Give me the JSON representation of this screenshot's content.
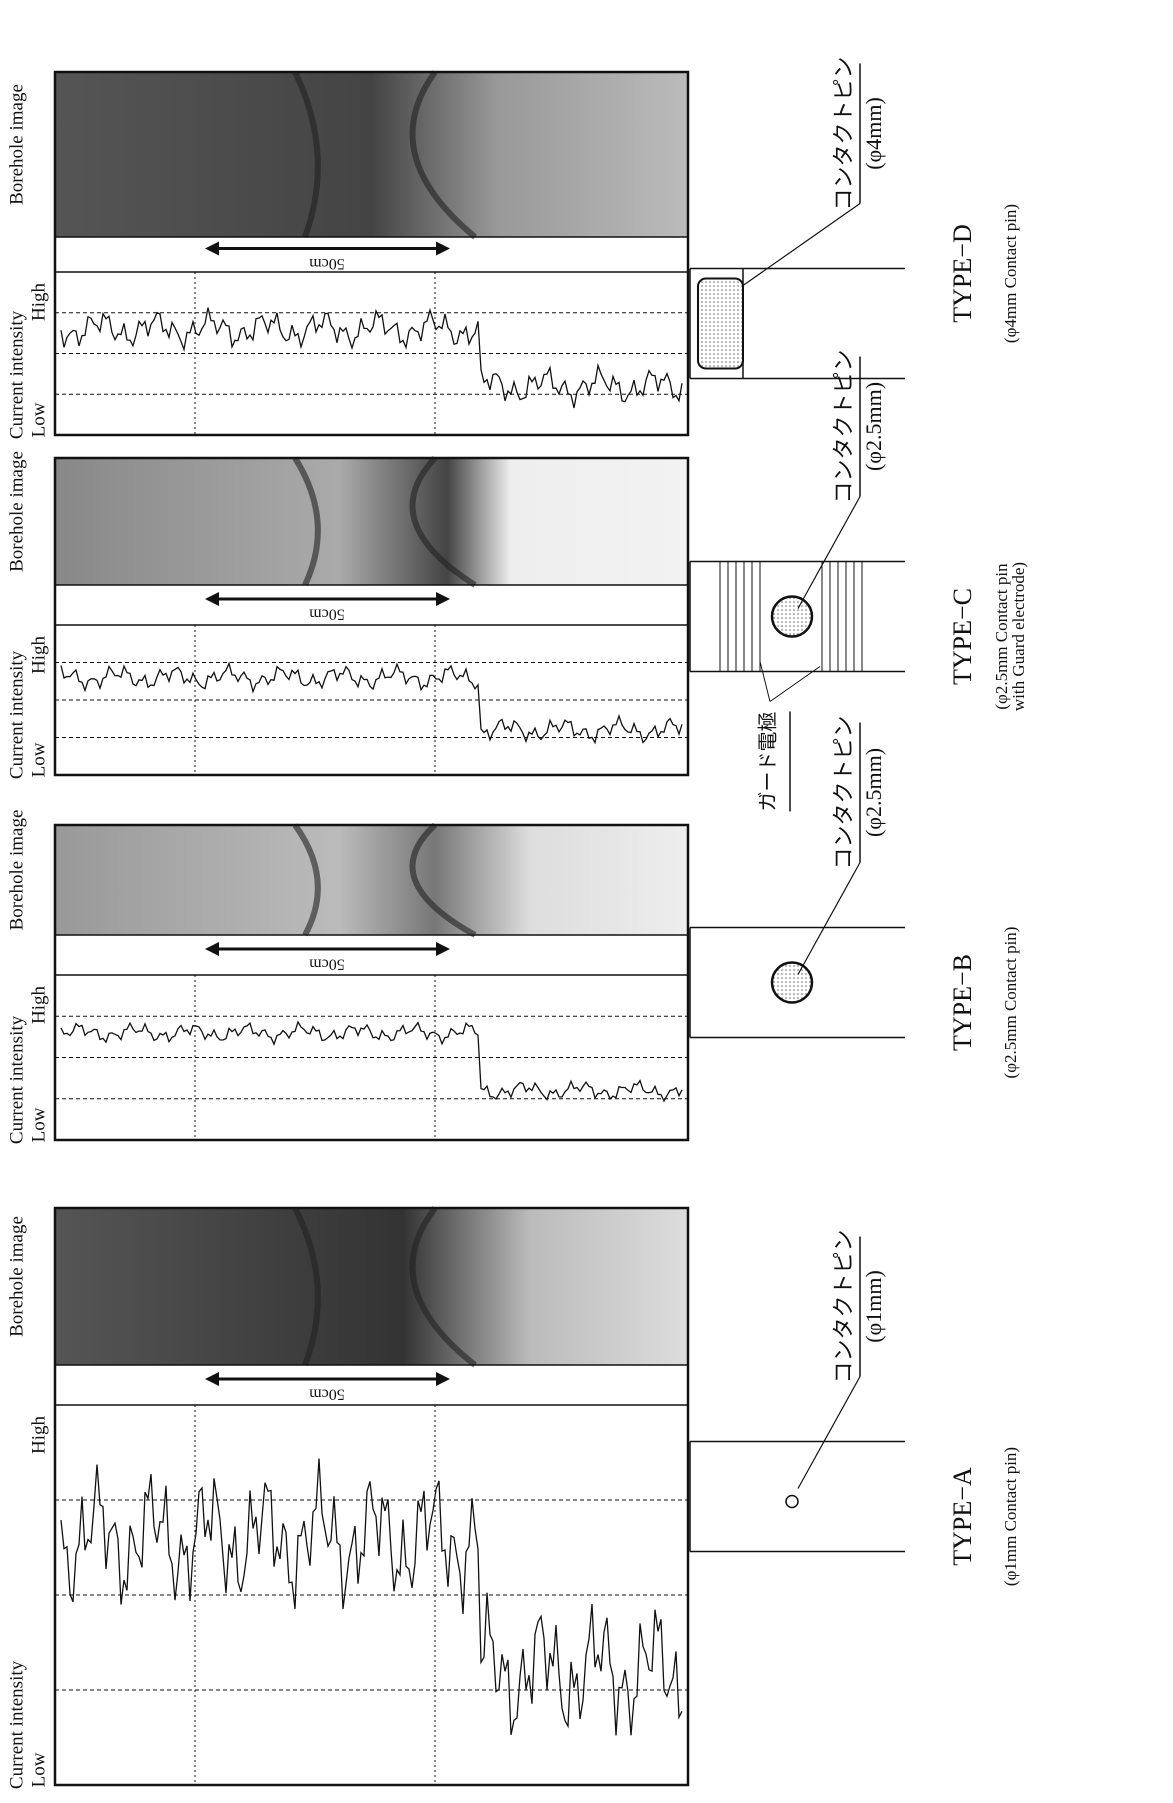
{
  "labels": {
    "current_intensity": "Current intensity",
    "low": "Low",
    "high": "High",
    "borehole_image": "Borehole image",
    "scale": "50cm"
  },
  "panels": [
    {
      "type": "TYPE−A",
      "description": "(φ1mm Contact pin)",
      "pin_label": "コンタクトピン",
      "pin_size": "(φ1mm)"
    },
    {
      "type": "TYPE−B",
      "description": "(φ2.5mm Contact pin)",
      "pin_label": "コンタクトピン",
      "pin_size": "(φ2.5mm)"
    },
    {
      "type": "TYPE−C",
      "description": "(φ2.5mm Contact pin",
      "description_line2": "with Guard electrode)",
      "pin_label": "コンタクトピン",
      "pin_size": "(φ2.5mm)",
      "guard_label": "ガード電極"
    },
    {
      "type": "TYPE−D",
      "description": "(φ4mm Contact pin)",
      "pin_label": "コンタクトピン",
      "pin_size": "(φ4mm)"
    }
  ]
}
